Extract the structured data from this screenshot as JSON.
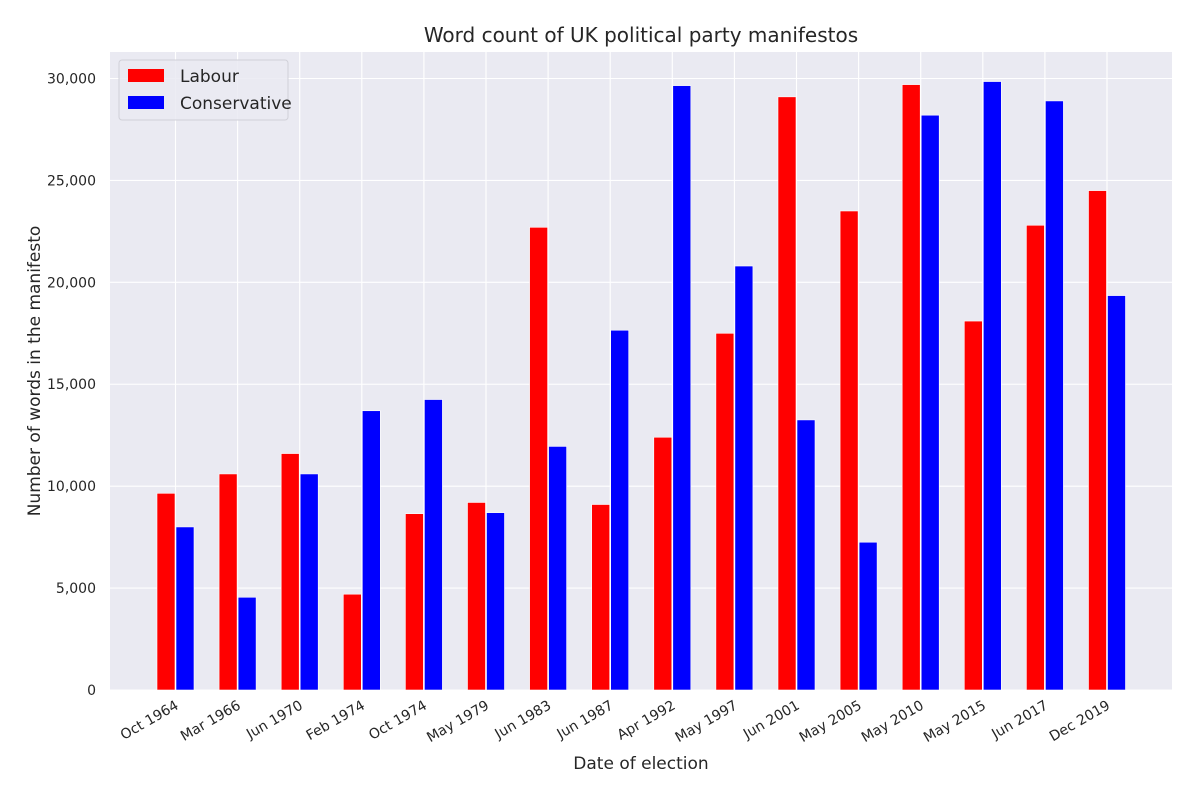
{
  "chart_data": {
    "type": "bar",
    "title": "Word count of UK political party manifestos",
    "xlabel": "Date of election",
    "ylabel": "Number of words in the manifesto",
    "categories": [
      "Oct 1964",
      "Mar 1966",
      "Jun 1970",
      "Feb 1974",
      "Oct 1974",
      "May 1979",
      "Jun 1983",
      "Jun 1987",
      "Apr 1992",
      "May 1997",
      "Jun 2001",
      "May 2005",
      "May 2010",
      "May 2015",
      "Jun 2017",
      "Dec 2019"
    ],
    "series": [
      {
        "name": "Labour",
        "color": "#ff0000",
        "values": [
          9650,
          10600,
          11600,
          4700,
          8650,
          9200,
          22700,
          9100,
          12400,
          17500,
          29100,
          23500,
          29700,
          18100,
          22800,
          24500
        ]
      },
      {
        "name": "Conservative",
        "color": "#0000ff",
        "values": [
          8000,
          4550,
          10600,
          13700,
          14250,
          8700,
          11950,
          17650,
          29650,
          20800,
          13250,
          7250,
          28200,
          29850,
          28900,
          19350
        ]
      }
    ],
    "ylim": [
      0,
      31300
    ],
    "yticks": [
      0,
      5000,
      10000,
      15000,
      20000,
      25000,
      30000
    ],
    "ytick_labels": [
      "0",
      "5,000",
      "10,000",
      "15,000",
      "20,000",
      "25,000",
      "30,000"
    ],
    "grid": true,
    "legend_position": "top-left",
    "colors": {
      "background": "#eaeaf2",
      "grid": "#ffffff"
    }
  }
}
